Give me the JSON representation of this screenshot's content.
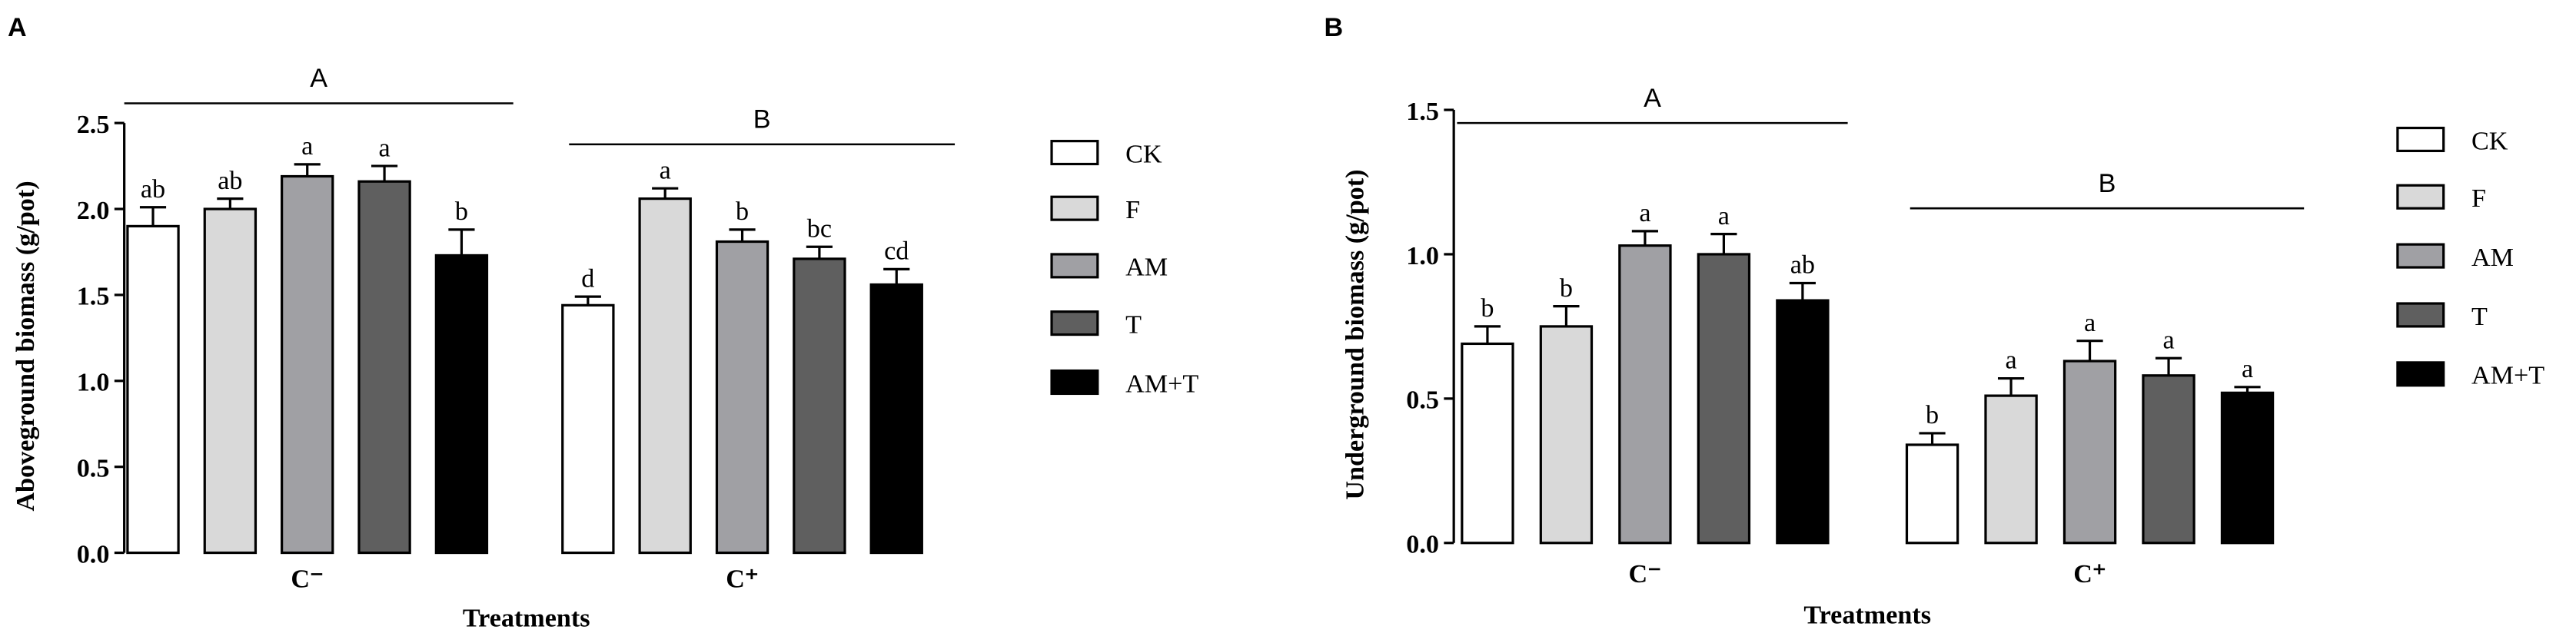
{
  "chart_data": [
    {
      "type": "bar",
      "panel": "A",
      "ylabel": "Aboveground biomass (g/pot)",
      "xlabel": "Treatments",
      "categories": [
        "C⁻",
        "C⁺"
      ],
      "group_labels": [
        "A",
        "B"
      ],
      "ylim": [
        0,
        2.5
      ],
      "yticks": [
        {
          "value": 0,
          "label": "0.0"
        },
        {
          "value": 0.5,
          "label": "0.5"
        },
        {
          "value": 1,
          "label": "1.0"
        },
        {
          "value": 1.5,
          "label": "1.5"
        },
        {
          "value": 2,
          "label": "2.0"
        },
        {
          "value": 2.5,
          "label": "2.5"
        }
      ],
      "series": [
        {
          "name": "CK",
          "color": "#ffffff",
          "values": [
            1.9,
            1.44
          ],
          "errors": [
            0.11,
            0.05
          ],
          "annotations": [
            "ab",
            "d"
          ]
        },
        {
          "name": "F",
          "color": "#d9d9d9",
          "values": [
            2.0,
            2.06
          ],
          "errors": [
            0.06,
            0.06
          ],
          "annotations": [
            "ab",
            "a"
          ]
        },
        {
          "name": "AM",
          "color": "#a0a0a4",
          "values": [
            2.19,
            1.81
          ],
          "errors": [
            0.07,
            0.07
          ],
          "annotations": [
            "a",
            "b"
          ]
        },
        {
          "name": "T",
          "color": "#5f5f5f",
          "values": [
            2.16,
            1.71
          ],
          "errors": [
            0.09,
            0.07
          ],
          "annotations": [
            "a",
            "bc"
          ]
        },
        {
          "name": "AM+T",
          "color": "#000000",
          "values": [
            1.73,
            1.56
          ],
          "errors": [
            0.15,
            0.09
          ],
          "annotations": [
            "b",
            "cd"
          ]
        }
      ]
    },
    {
      "type": "bar",
      "panel": "B",
      "ylabel": "Underground biomass (g/pot)",
      "xlabel": "Treatments",
      "categories": [
        "C⁻",
        "C⁺"
      ],
      "group_labels": [
        "A",
        "B"
      ],
      "ylim": [
        0,
        1.5
      ],
      "yticks": [
        {
          "value": 0,
          "label": "0.0"
        },
        {
          "value": 0.5,
          "label": "0.5"
        },
        {
          "value": 1,
          "label": "1.0"
        },
        {
          "value": 1.5,
          "label": "1.5"
        }
      ],
      "series": [
        {
          "name": "CK",
          "color": "#ffffff",
          "values": [
            0.69,
            0.34
          ],
          "errors": [
            0.06,
            0.04
          ],
          "annotations": [
            "b",
            "b"
          ]
        },
        {
          "name": "F",
          "color": "#d9d9d9",
          "values": [
            0.75,
            0.51
          ],
          "errors": [
            0.07,
            0.06
          ],
          "annotations": [
            "b",
            "a"
          ]
        },
        {
          "name": "AM",
          "color": "#a0a0a4",
          "values": [
            1.03,
            0.63
          ],
          "errors": [
            0.05,
            0.07
          ],
          "annotations": [
            "a",
            "a"
          ]
        },
        {
          "name": "T",
          "color": "#5f5f5f",
          "values": [
            1.0,
            0.58
          ],
          "errors": [
            0.07,
            0.06
          ],
          "annotations": [
            "a",
            "a"
          ]
        },
        {
          "name": "AM+T",
          "color": "#000000",
          "values": [
            0.84,
            0.52
          ],
          "errors": [
            0.06,
            0.02
          ],
          "annotations": [
            "ab",
            "a"
          ]
        }
      ]
    }
  ]
}
